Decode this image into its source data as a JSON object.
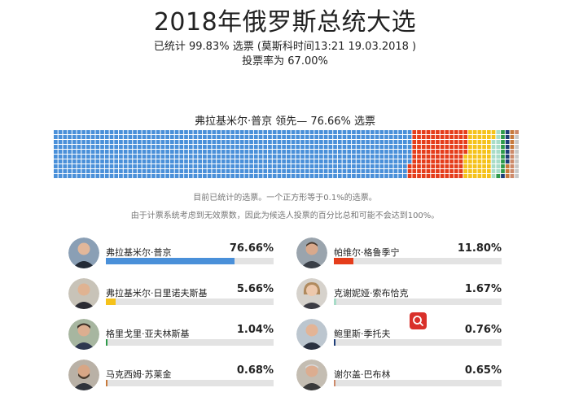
{
  "header": {
    "title": "2018年俄罗斯总统大选",
    "counted": "已统计 99.83% 选票 (莫斯科时间13:21 19.03.2018 )",
    "turnout": "投票率为 67.00%"
  },
  "leader_line": "弗拉基米尔·普京 领先— 76.66% 选票",
  "notes": {
    "note1": "目前已统计的选票。一个正方形等于0.1%的选票。",
    "note2": "由于计票系统考虑到无效票数，因此为候选人投票的百分比总和可能不会达到100%。"
  },
  "chart_data": {
    "type": "bar",
    "title": "2018年俄罗斯总统大选",
    "categories": [
      "弗拉基米尔·普京",
      "帕维尔·格鲁季宁",
      "弗拉基米尔·日里诺夫斯基",
      "克谢妮娅·索布恰克",
      "格里戈里·亚夫林斯基",
      "鲍里斯·季托夫",
      "马克西姆·苏莱金",
      "谢尔盖·巴布林"
    ],
    "values": [
      76.66,
      11.8,
      5.66,
      1.67,
      1.04,
      0.76,
      0.68,
      0.65
    ],
    "value_labels": [
      "76.66%",
      "11.80%",
      "5.66%",
      "1.67%",
      "1.04%",
      "0.76%",
      "0.68%",
      "0.65%"
    ],
    "colors": [
      "#4a90d9",
      "#e53d1b",
      "#f5c21b",
      "#a8dcc8",
      "#2e9a4a",
      "#1e3e78",
      "#c87a3c",
      "#cd8a6a"
    ],
    "ylim": [
      0,
      100
    ],
    "waffle_unit_percent": 0.1
  },
  "colors": {
    "track": "#e3e3e3",
    "waffle_rest": "#c8c8c8",
    "search_badge": "#d9302a"
  },
  "search_badge_icon": "search-icon"
}
